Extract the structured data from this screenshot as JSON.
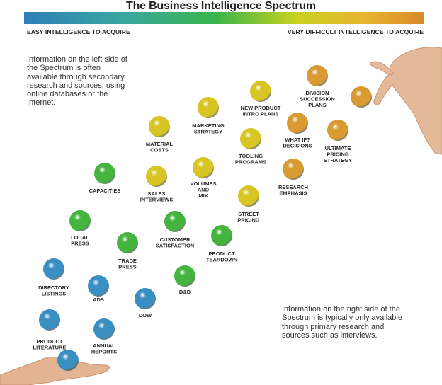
{
  "title": "The Business Intelligence Spectrum",
  "scale": {
    "left_label": "EASY INTELLIGENCE TO ACQUIRE",
    "right_label": "VERY DIFFICULT INTELLIGENCE TO ACQUIRE"
  },
  "notes": {
    "left": "Information on the left side of the Spectrum is often available through secondary research and sources, using online databases or the Internet.",
    "right": "Information on the right side of the Spectrum is typically only available through primary research and sources such as interviews."
  },
  "colors": {
    "blue": "#3a8fc2",
    "green": "#45b43f",
    "yellow": "#d8c423",
    "orange": "#d99a32"
  },
  "items": [
    {
      "id": "product-literature",
      "label": [
        "PRODUCT",
        "LITERATURE"
      ],
      "color": "blue"
    },
    {
      "id": "annual-reports",
      "label": [
        "ANNUAL",
        "REPORTS"
      ],
      "color": "blue"
    },
    {
      "id": "directory-listings",
      "label": [
        "DIRECTORY",
        "LISTINGS"
      ],
      "color": "blue"
    },
    {
      "id": "ads",
      "label": [
        "ADS"
      ],
      "color": "blue"
    },
    {
      "id": "dow",
      "label": [
        "DOW"
      ],
      "color": "blue"
    },
    {
      "id": "local-press",
      "label": [
        "LOCAL",
        "PRESS"
      ],
      "color": "green"
    },
    {
      "id": "trade-press",
      "label": [
        "TRADE",
        "PRESS"
      ],
      "color": "green"
    },
    {
      "id": "d-and-b",
      "label": [
        "D&B"
      ],
      "color": "green"
    },
    {
      "id": "capacities",
      "label": [
        "CAPACITIES"
      ],
      "color": "green"
    },
    {
      "id": "customer-satisfaction",
      "label": [
        "CUSTOMER",
        "SATISFACTION"
      ],
      "color": "green"
    },
    {
      "id": "product-teardown",
      "label": [
        "PRODUCT",
        "TEARDOWN"
      ],
      "color": "green"
    },
    {
      "id": "sales-interviews",
      "label": [
        "SALES",
        "INTERVIEWS"
      ],
      "color": "yellow"
    },
    {
      "id": "material-costs",
      "label": [
        "MATERIAL",
        "COSTS"
      ],
      "color": "yellow"
    },
    {
      "id": "volumes-and-mix",
      "label": [
        "VOLUMES",
        "AND",
        "MIX"
      ],
      "color": "yellow"
    },
    {
      "id": "street-pricing",
      "label": [
        "STREET",
        "PRICING"
      ],
      "color": "yellow"
    },
    {
      "id": "marketing-strategy",
      "label": [
        "MARKETING",
        "STRATEGY"
      ],
      "color": "yellow"
    },
    {
      "id": "tooling-programs",
      "label": [
        "TOOLING",
        "PROGRAMS"
      ],
      "color": "yellow"
    },
    {
      "id": "new-product-intro-plans",
      "label": [
        "NEW PRODUCT",
        "INTRO PLANS"
      ],
      "color": "yellow"
    },
    {
      "id": "research-emphasis",
      "label": [
        "RESEARCH",
        "EMPHASIS"
      ],
      "color": "orange"
    },
    {
      "id": "what-if-decisions",
      "label": [
        "WHAT IF?",
        "DECISIONS"
      ],
      "color": "orange"
    },
    {
      "id": "division-succession-plans",
      "label": [
        "DIVISION",
        "SUCCESSION",
        "PLANS"
      ],
      "color": "orange"
    },
    {
      "id": "ultimate-pricing-strategy",
      "label": [
        "ULTIMATE",
        "PRICING",
        "STRATEGY"
      ],
      "color": "orange"
    },
    {
      "id": "held-ball-left",
      "label": [],
      "color": "blue"
    },
    {
      "id": "held-ball-right",
      "label": [],
      "color": "orange"
    }
  ]
}
